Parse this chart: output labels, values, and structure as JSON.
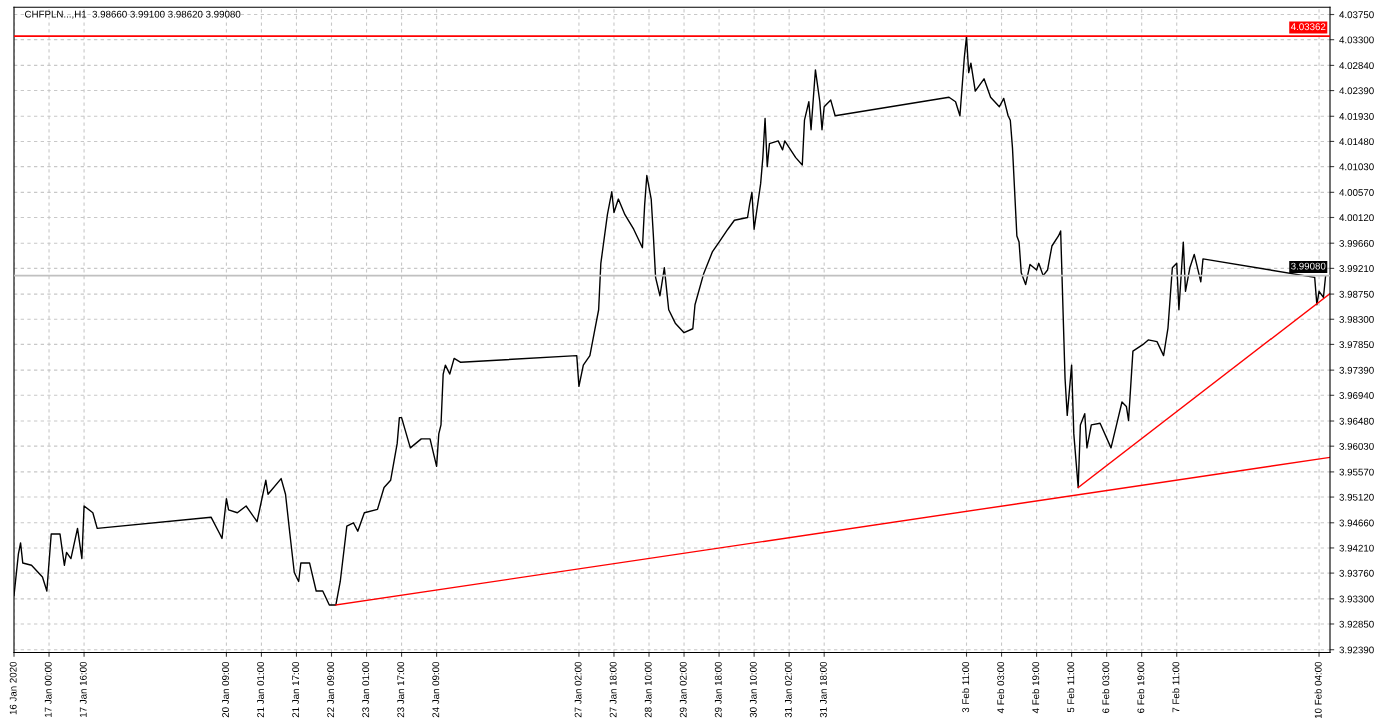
{
  "chart_data": {
    "type": "line",
    "title": "CHFPLN...,H1  3.98660 3.99100 3.98620 3.99080",
    "xlim": [
      "2020-01-16T08:00",
      "2020-02-10T09:00"
    ],
    "ylim": [
      3.9234,
      4.0388
    ],
    "xticks": [
      {
        "value": "2020-01-16T08:00",
        "label": "16 Jan 2020"
      },
      {
        "value": "2020-01-17T00:00",
        "label": "17 Jan 00:00"
      },
      {
        "value": "2020-01-17T16:00",
        "label": "17 Jan 16:00"
      },
      {
        "value": "2020-01-20T09:00",
        "label": "20 Jan 09:00"
      },
      {
        "value": "2020-01-21T01:00",
        "label": "21 Jan 01:00"
      },
      {
        "value": "2020-01-21T17:00",
        "label": "21 Jan 17:00"
      },
      {
        "value": "2020-01-22T09:00",
        "label": "22 Jan 09:00"
      },
      {
        "value": "2020-01-23T01:00",
        "label": "23 Jan 01:00"
      },
      {
        "value": "2020-01-23T17:00",
        "label": "23 Jan 17:00"
      },
      {
        "value": "2020-01-24T09:00",
        "label": "24 Jan 09:00"
      },
      {
        "value": "2020-01-27T02:00",
        "label": "27 Jan 02:00"
      },
      {
        "value": "2020-01-27T18:00",
        "label": "27 Jan 18:00"
      },
      {
        "value": "2020-01-28T10:00",
        "label": "28 Jan 10:00"
      },
      {
        "value": "2020-01-29T02:00",
        "label": "29 Jan 02:00"
      },
      {
        "value": "2020-01-29T18:00",
        "label": "29 Jan 18:00"
      },
      {
        "value": "2020-01-30T10:00",
        "label": "30 Jan 10:00"
      },
      {
        "value": "2020-01-31T02:00",
        "label": "31 Jan 02:00"
      },
      {
        "value": "2020-01-31T18:00",
        "label": "31 Jan 18:00"
      },
      {
        "value": "2020-02-03T11:00",
        "label": "3 Feb 11:00"
      },
      {
        "value": "2020-02-04T03:00",
        "label": "4 Feb 03:00"
      },
      {
        "value": "2020-02-04T19:00",
        "label": "4 Feb 19:00"
      },
      {
        "value": "2020-02-05T11:00",
        "label": "5 Feb 11:00"
      },
      {
        "value": "2020-02-06T03:00",
        "label": "6 Feb 03:00"
      },
      {
        "value": "2020-02-06T19:00",
        "label": "6 Feb 19:00"
      },
      {
        "value": "2020-02-07T11:00",
        "label": "7 Feb 11:00"
      },
      {
        "value": "2020-02-10T04:00",
        "label": "10 Feb 04:00"
      }
    ],
    "yticks": [
      {
        "value": 4.0375,
        "label": "4.03750"
      },
      {
        "value": 4.033,
        "label": "4.03300"
      },
      {
        "value": 4.0284,
        "label": "4.02840"
      },
      {
        "value": 4.0239,
        "label": "4.02390"
      },
      {
        "value": 4.0193,
        "label": "4.01930"
      },
      {
        "value": 4.0148,
        "label": "4.01480"
      },
      {
        "value": 4.0103,
        "label": "4.01030"
      },
      {
        "value": 4.0057,
        "label": "4.00570"
      },
      {
        "value": 4.0012,
        "label": "4.00120"
      },
      {
        "value": 3.9966,
        "label": "3.99660"
      },
      {
        "value": 3.9921,
        "label": "3.99210"
      },
      {
        "value": 3.9875,
        "label": "3.98750"
      },
      {
        "value": 3.983,
        "label": "3.98300"
      },
      {
        "value": 3.9785,
        "label": "3.97850"
      },
      {
        "value": 3.9739,
        "label": "3.97390"
      },
      {
        "value": 3.9694,
        "label": "3.96940"
      },
      {
        "value": 3.9648,
        "label": "3.96480"
      },
      {
        "value": 3.9603,
        "label": "3.96030"
      },
      {
        "value": 3.9557,
        "label": "3.95570"
      },
      {
        "value": 3.9512,
        "label": "3.95120"
      },
      {
        "value": 3.9466,
        "label": "3.94660"
      },
      {
        "value": 3.9421,
        "label": "3.94210"
      },
      {
        "value": 3.9376,
        "label": "3.93760"
      },
      {
        "value": 3.933,
        "label": "3.93300"
      },
      {
        "value": 3.9285,
        "label": "3.92850"
      },
      {
        "value": 3.9239,
        "label": "3.92390"
      }
    ],
    "grid": true,
    "line_style": "solid",
    "ref_lines": [
      {
        "axis": "y",
        "value": 4.03362,
        "label": "4.03362",
        "color": "#ff0000"
      },
      {
        "axis": "y",
        "value": 3.9908,
        "label": "3.99080",
        "color": "#c0c0c0"
      }
    ],
    "series": [
      {
        "color": "#000000",
        "x": [
          "2020-01-16T08:00",
          "2020-01-16T10:00",
          "2020-01-16T11:00",
          "2020-01-16T12:00",
          "2020-01-16T16:00",
          "2020-01-16T21:00",
          "2020-01-16T23:00",
          "2020-01-17T01:00",
          "2020-01-17T05:00",
          "2020-01-17T07:00",
          "2020-01-17T08:00",
          "2020-01-17T10:00",
          "2020-01-17T13:00",
          "2020-01-17T15:00",
          "2020-01-17T16:00",
          "2020-01-17T20:00",
          "2020-01-17T22:00",
          "2020-01-20T02:00",
          "2020-01-20T06:00",
          "2020-01-20T07:00",
          "2020-01-20T09:00",
          "2020-01-20T10:00",
          "2020-01-20T14:00",
          "2020-01-20T18:00",
          "2020-01-20T23:00",
          "2020-01-21T03:00",
          "2020-01-21T04:00",
          "2020-01-21T10:00",
          "2020-01-21T12:00",
          "2020-01-21T14:00",
          "2020-01-21T16:00",
          "2020-01-21T18:00",
          "2020-01-21T19:00",
          "2020-01-21T23:00",
          "2020-01-22T02:00",
          "2020-01-22T05:00",
          "2020-01-22T08:00",
          "2020-01-22T11:00",
          "2020-01-22T13:00",
          "2020-01-22T16:00",
          "2020-01-22T19:00",
          "2020-01-22T21:00",
          "2020-01-23T00:00",
          "2020-01-23T06:00",
          "2020-01-23T09:00",
          "2020-01-23T12:00",
          "2020-01-23T15:00",
          "2020-01-23T16:00",
          "2020-01-23T17:00",
          "2020-01-23T21:00",
          "2020-01-24T02:00",
          "2020-01-24T06:00",
          "2020-01-24T09:00",
          "2020-01-24T10:00",
          "2020-01-24T11:00",
          "2020-01-24T12:00",
          "2020-01-24T13:00",
          "2020-01-24T15:00",
          "2020-01-24T17:00",
          "2020-01-24T20:00",
          "2020-01-27T01:00",
          "2020-01-27T02:00",
          "2020-01-27T04:00",
          "2020-01-27T07:00",
          "2020-01-27T09:00",
          "2020-01-27T11:00",
          "2020-01-27T12:00",
          "2020-01-27T15:00",
          "2020-01-27T17:00",
          "2020-01-27T18:00",
          "2020-01-27T20:00",
          "2020-01-27T23:00",
          "2020-01-28T03:00",
          "2020-01-28T07:00",
          "2020-01-28T08:00",
          "2020-01-28T09:00",
          "2020-01-28T11:00",
          "2020-01-28T12:00",
          "2020-01-28T13:00",
          "2020-01-28T15:00",
          "2020-01-28T17:00",
          "2020-01-28T19:00",
          "2020-01-28T22:00",
          "2020-01-29T02:00",
          "2020-01-29T06:00",
          "2020-01-29T07:00",
          "2020-01-29T11:00",
          "2020-01-29T15:00",
          "2020-01-29T18:00",
          "2020-01-29T22:00",
          "2020-01-30T01:00",
          "2020-01-30T07:00",
          "2020-01-30T08:00",
          "2020-01-30T09:00",
          "2020-01-30T10:00",
          "2020-01-30T13:00",
          "2020-01-30T14:00",
          "2020-01-30T15:00",
          "2020-01-30T16:00",
          "2020-01-30T17:00",
          "2020-01-30T21:00",
          "2020-01-30T23:00",
          "2020-01-31T00:00",
          "2020-01-31T05:00",
          "2020-01-31T08:00",
          "2020-01-31T09:00",
          "2020-01-31T11:00",
          "2020-01-31T12:00",
          "2020-01-31T14:00",
          "2020-01-31T16:00",
          "2020-01-31T17:00",
          "2020-01-31T18:00",
          "2020-01-31T21:00",
          "2020-01-31T23:00",
          "2020-02-03T03:00",
          "2020-02-03T06:00",
          "2020-02-03T08:00",
          "2020-02-03T10:00",
          "2020-02-03T11:00",
          "2020-02-03T12:00",
          "2020-02-03T13:00",
          "2020-02-03T15:00",
          "2020-02-03T19:00",
          "2020-02-03T22:00",
          "2020-02-04T02:00",
          "2020-02-04T04:00",
          "2020-02-04T06:00",
          "2020-02-04T07:00",
          "2020-02-04T08:00",
          "2020-02-04T10:00",
          "2020-02-04T11:00",
          "2020-02-04T12:00",
          "2020-02-04T14:00",
          "2020-02-04T16:00",
          "2020-02-04T19:00",
          "2020-02-04T20:00",
          "2020-02-04T22:00",
          "2020-02-05T00:00",
          "2020-02-05T02:00",
          "2020-02-05T05:00",
          "2020-02-05T06:00",
          "2020-02-05T08:00",
          "2020-02-05T09:00",
          "2020-02-05T11:00",
          "2020-02-05T12:00",
          "2020-02-05T14:00",
          "2020-02-05T15:00",
          "2020-02-05T17:00",
          "2020-02-05T18:00",
          "2020-02-05T20:00",
          "2020-02-06T00:00",
          "2020-02-06T05:00",
          "2020-02-06T08:00",
          "2020-02-06T10:00",
          "2020-02-06T12:00",
          "2020-02-06T13:00",
          "2020-02-06T15:00",
          "2020-02-06T20:00",
          "2020-02-06T22:00",
          "2020-02-07T02:00",
          "2020-02-07T05:00",
          "2020-02-07T07:00",
          "2020-02-07T09:00",
          "2020-02-07T11:00",
          "2020-02-07T12:00",
          "2020-02-07T14:00",
          "2020-02-07T15:00",
          "2020-02-07T17:00",
          "2020-02-07T19:00",
          "2020-02-07T20:00",
          "2020-02-07T22:00",
          "2020-02-07T23:00",
          "2020-02-10T02:00",
          "2020-02-10T03:00",
          "2020-02-10T04:00",
          "2020-02-10T06:00",
          "2020-02-10T07:00"
        ],
        "values": [
          3.9336,
          3.941,
          3.943,
          3.9394,
          3.939,
          3.9369,
          3.9344,
          3.9446,
          3.9446,
          3.939,
          3.9413,
          3.9402,
          3.9456,
          3.9402,
          3.9496,
          3.9484,
          3.9456,
          3.9476,
          3.9446,
          3.9438,
          3.9509,
          3.9489,
          3.9484,
          3.9496,
          3.9468,
          3.9542,
          3.9517,
          3.9545,
          3.9517,
          3.9446,
          3.9377,
          3.9361,
          3.9394,
          3.9394,
          3.9344,
          3.9344,
          3.9319,
          3.9319,
          3.9361,
          3.946,
          3.9466,
          3.9451,
          3.9484,
          3.949,
          3.9529,
          3.9542,
          3.9608,
          3.9654,
          3.9654,
          3.96,
          3.9616,
          3.9616,
          3.9567,
          3.9625,
          3.9641,
          3.9732,
          3.9748,
          3.9732,
          3.976,
          3.9753,
          3.9765,
          3.971,
          3.9748,
          3.9765,
          3.9806,
          3.9847,
          3.993,
          4.0017,
          4.0058,
          4.0021,
          4.0045,
          4.0017,
          3.9991,
          3.9958,
          4.0034,
          4.0087,
          4.0045,
          3.9979,
          3.9905,
          3.9872,
          3.9922,
          3.9847,
          3.9823,
          3.9806,
          3.9813,
          3.9856,
          3.9912,
          3.9951,
          3.9968,
          3.9991,
          4.0007,
          4.0012,
          4.0037,
          4.0057,
          3.9991,
          4.0073,
          4.012,
          4.0189,
          4.0103,
          4.0144,
          4.0149,
          4.0133,
          4.0149,
          4.0119,
          4.0106,
          4.0186,
          4.0219,
          4.0169,
          4.0276,
          4.0219,
          4.0169,
          4.021,
          4.0222,
          4.0194,
          4.0227,
          4.0219,
          4.0194,
          4.0298,
          4.0336,
          4.0271,
          4.0288,
          4.0238,
          4.026,
          4.0227,
          4.021,
          4.0225,
          4.0194,
          4.0186,
          4.0136,
          3.9979,
          3.9968,
          3.9913,
          3.9892,
          3.9928,
          3.9918,
          3.993,
          3.9908,
          3.9918,
          3.9961,
          3.9979,
          3.9988,
          3.9724,
          3.9658,
          3.9748,
          3.9625,
          3.9529,
          3.9641,
          3.9661,
          3.96,
          3.9641,
          3.9644,
          3.96,
          3.9649,
          3.9682,
          3.9674,
          3.9649,
          3.9773,
          3.9786,
          3.9793,
          3.979,
          3.9765,
          3.9814,
          3.9922,
          3.993,
          3.9847,
          3.9968,
          3.988,
          3.9922,
          3.9946,
          3.993,
          3.9897,
          3.9938,
          3.9905,
          3.9856,
          3.988,
          3.9869,
          3.9908
        ]
      },
      {
        "color": "#ff0000",
        "x": [
          "2020-01-22T11:00",
          "2020-02-10T09:00"
        ],
        "values": [
          3.9319,
          3.9583
        ]
      },
      {
        "color": "#ff0000",
        "x": [
          "2020-02-05T14:00",
          "2020-02-10T09:00"
        ],
        "values": [
          3.9529,
          3.9876
        ]
      }
    ]
  }
}
